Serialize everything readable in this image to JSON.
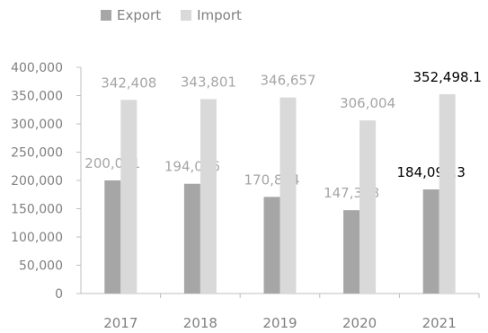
{
  "legend": {
    "export_label": "Export",
    "import_label": "Import"
  },
  "colors": {
    "export": "#a6a6a6",
    "import": "#d9d9d9",
    "axis_text": "#808080",
    "label_default": "#a6a6a6",
    "label_highlight": "#000000"
  },
  "chart_data": {
    "type": "bar",
    "categories": [
      "2017",
      "2018",
      "2019",
      "2020",
      "2021"
    ],
    "series": [
      {
        "name": "Export",
        "values": [
          200021,
          194056,
          170844,
          147358,
          184093.3
        ],
        "labels": [
          "200,021",
          "194,056",
          "170,844",
          "147,358",
          "184,093.3"
        ]
      },
      {
        "name": "Import",
        "values": [
          342408,
          343801,
          346657,
          306004,
          352498.1
        ],
        "labels": [
          "342,408",
          "343,801",
          "346,657",
          "306,004",
          "352,498.1"
        ]
      }
    ],
    "ylim": [
      0,
      400000
    ],
    "yticks": [
      0,
      50000,
      100000,
      150000,
      200000,
      250000,
      300000,
      350000,
      400000
    ],
    "ytick_labels": [
      "0",
      "50,000",
      "100,000",
      "150,000",
      "200,000",
      "250,000",
      "300,000",
      "350,000",
      "400,000"
    ],
    "highlight_category": "2021",
    "grid": false,
    "legend_position": "top-left"
  }
}
